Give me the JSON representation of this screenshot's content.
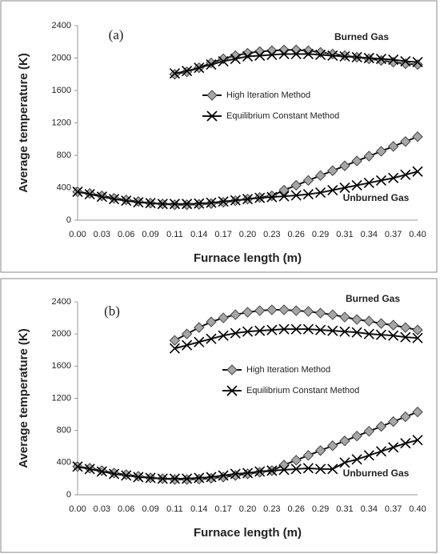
{
  "chart_data": [
    {
      "type": "line",
      "panel_label": "(a)",
      "ylabel": "Average temperature (K)",
      "xlabel": "Furnace length (m)",
      "annotations": [
        "Burned Gas",
        "Unburned Gas"
      ],
      "categories": [
        "0.00",
        null,
        "0.03",
        null,
        "0.06",
        null,
        "0.09",
        null,
        "0.11",
        null,
        "0.14",
        null,
        "0.17",
        null,
        "0.20",
        null,
        "0.23",
        null,
        "0.26",
        null,
        "0.29",
        null,
        "0.31",
        null,
        "0.34",
        null,
        "0.37",
        null,
        "0.40"
      ],
      "ylim": [
        0,
        2400
      ],
      "yticks": [
        0,
        400,
        800,
        1200,
        1600,
        2000,
        2400
      ],
      "series": [
        {
          "name": "High Iteration Method",
          "marker": "diamond",
          "color": "#a6a6a6",
          "values": [
            350,
            330,
            300,
            270,
            250,
            230,
            210,
            200,
            190,
            190,
            195,
            205,
            220,
            240,
            260,
            280,
            300,
            370,
            430,
            490,
            550,
            610,
            670,
            730,
            790,
            850,
            910,
            970,
            1030
          ]
        },
        {
          "name": "Equilibrium Constant Method",
          "marker": "x",
          "color": "#000000",
          "values": [
            350,
            320,
            290,
            260,
            240,
            220,
            210,
            200,
            200,
            200,
            205,
            215,
            230,
            245,
            260,
            275,
            285,
            295,
            305,
            320,
            340,
            370,
            400,
            430,
            460,
            490,
            520,
            560,
            600
          ]
        },
        {
          "name": "High Iteration Method",
          "marker": "diamond",
          "color": "#a6a6a6",
          "values": [
            null,
            null,
            null,
            null,
            null,
            null,
            null,
            null,
            1800,
            1830,
            1880,
            1940,
            1990,
            2030,
            2060,
            2080,
            2090,
            2100,
            2100,
            2090,
            2070,
            2050,
            2030,
            2010,
            1990,
            1970,
            1950,
            1930,
            1920
          ]
        },
        {
          "name": "Equilibrium Constant Method",
          "marker": "x",
          "color": "#000000",
          "values": [
            null,
            null,
            null,
            null,
            null,
            null,
            null,
            null,
            1810,
            1840,
            1880,
            1920,
            1960,
            1990,
            2020,
            2030,
            2040,
            2050,
            2050,
            2050,
            2040,
            2030,
            2020,
            2010,
            2000,
            1990,
            1980,
            1960,
            1950
          ]
        }
      ]
    },
    {
      "type": "line",
      "panel_label": "(b)",
      "ylabel": "Average temperature (K)",
      "xlabel": "Furnace length (m)",
      "annotations": [
        "Burned Gas",
        "Unburned Gas"
      ],
      "categories": [
        "0.00",
        null,
        "0.03",
        null,
        "0.06",
        null,
        "0.09",
        null,
        "0.11",
        null,
        "0.14",
        null,
        "0.17",
        null,
        "0.20",
        null,
        "0.23",
        null,
        "0.26",
        null,
        "0.29",
        null,
        "0.31",
        null,
        "0.34",
        null,
        "0.37",
        null,
        "0.40"
      ],
      "ylim": [
        0,
        2400
      ],
      "yticks": [
        0,
        400,
        800,
        1200,
        1600,
        2000,
        2400
      ],
      "series": [
        {
          "name": "High Iteration Method",
          "marker": "diamond",
          "color": "#a6a6a6",
          "values": [
            350,
            330,
            300,
            270,
            250,
            230,
            210,
            200,
            190,
            190,
            195,
            205,
            220,
            240,
            260,
            280,
            300,
            370,
            430,
            490,
            550,
            610,
            670,
            730,
            790,
            850,
            910,
            970,
            1030
          ]
        },
        {
          "name": "Equilibrium Constant Method",
          "marker": "x",
          "color": "#000000",
          "values": [
            350,
            320,
            290,
            260,
            240,
            220,
            210,
            200,
            200,
            200,
            210,
            220,
            240,
            260,
            270,
            290,
            300,
            310,
            320,
            330,
            320,
            320,
            400,
            440,
            490,
            540,
            590,
            640,
            680
          ]
        },
        {
          "name": "High Iteration Method",
          "marker": "diamond",
          "color": "#a6a6a6",
          "values": [
            null,
            null,
            null,
            null,
            null,
            null,
            null,
            null,
            1920,
            2000,
            2080,
            2150,
            2200,
            2240,
            2270,
            2290,
            2300,
            2300,
            2290,
            2280,
            2260,
            2240,
            2210,
            2180,
            2160,
            2130,
            2110,
            2080,
            2050
          ]
        },
        {
          "name": "Equilibrium Constant Method",
          "marker": "x",
          "color": "#000000",
          "values": [
            null,
            null,
            null,
            null,
            null,
            null,
            null,
            null,
            1820,
            1860,
            1900,
            1940,
            1980,
            2010,
            2030,
            2040,
            2050,
            2060,
            2060,
            2060,
            2050,
            2040,
            2030,
            2020,
            2000,
            1990,
            1980,
            1960,
            1950
          ]
        }
      ]
    }
  ]
}
